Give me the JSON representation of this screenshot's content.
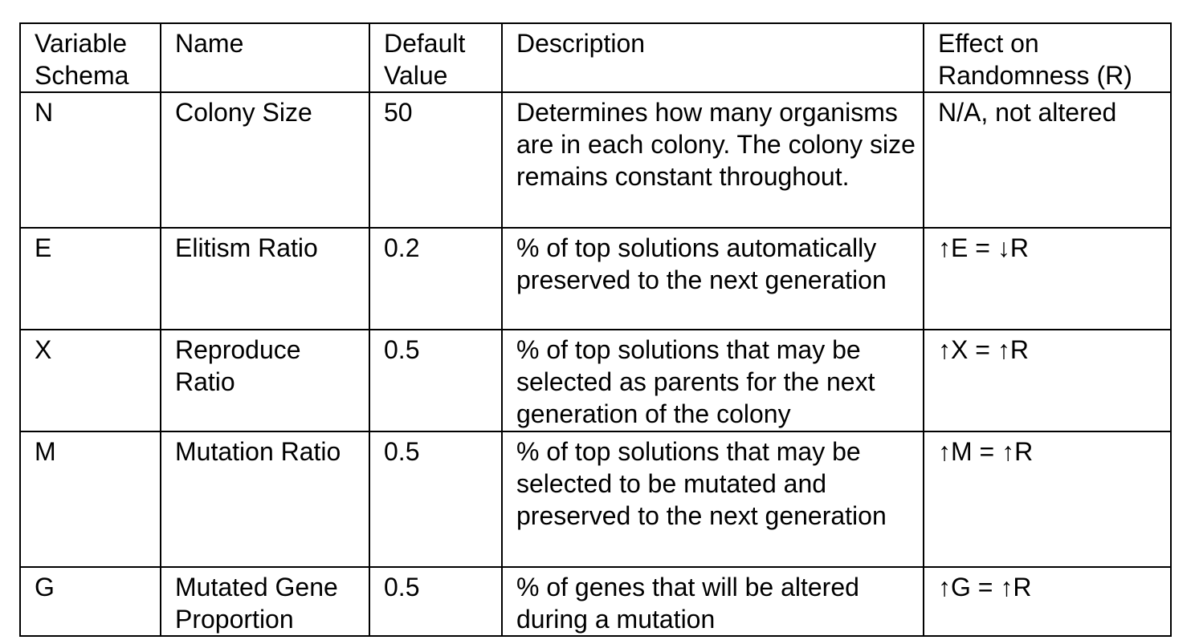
{
  "table": {
    "headers": {
      "variable": "Variable Schema",
      "name": "Name",
      "default": "Default Value",
      "description": "Description",
      "effect": "Effect on Randomness (R)"
    },
    "rows": [
      {
        "variable": "N",
        "name": "Colony Size",
        "default": "50",
        "description": "Determines how many organisms are in each colony. The colony size remains constant throughout.",
        "effect": "N/A, not altered"
      },
      {
        "variable": "E",
        "name": "Elitism Ratio",
        "default": "0.2",
        "description": "% of top solutions automatically preserved to the next generation",
        "effect": "↑E = ↓R"
      },
      {
        "variable": "X",
        "name": "Reproduce Ratio",
        "default": "0.5",
        "description": "% of top solutions that may be selected as parents for the next generation of the colony",
        "effect": "↑X = ↑R"
      },
      {
        "variable": "M",
        "name": "Mutation Ratio",
        "default": "0.5",
        "description": "% of top solutions that may be selected to be mutated and preserved to the next generation",
        "effect": "↑M = ↑R"
      },
      {
        "variable": "G",
        "name": "Mutated Gene Proportion",
        "default": "0.5",
        "description": "% of genes that will be altered during a mutation",
        "effect": "↑G = ↑R"
      }
    ]
  }
}
